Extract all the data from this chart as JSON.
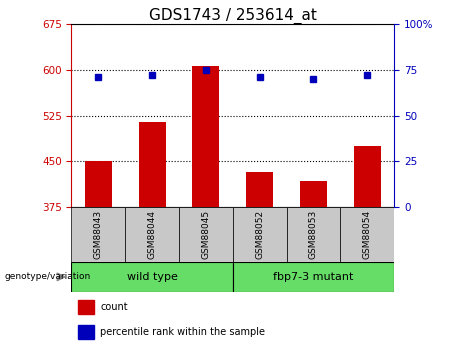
{
  "title": "GDS1743 / 253614_at",
  "samples": [
    "GSM88043",
    "GSM88044",
    "GSM88045",
    "GSM88052",
    "GSM88053",
    "GSM88054"
  ],
  "bar_values": [
    450,
    515,
    607,
    432,
    418,
    475
  ],
  "dot_values": [
    71,
    72,
    75,
    71,
    70,
    72
  ],
  "y_min": 375,
  "y_max": 675,
  "y_ticks": [
    375,
    450,
    525,
    600,
    675
  ],
  "y2_ticks": [
    0,
    25,
    50,
    75,
    100
  ],
  "bar_color": "#cc0000",
  "dot_color": "#0000bb",
  "group1_label": "wild type",
  "group2_label": "fbp7-3 mutant",
  "group_bg_color": "#66dd66",
  "sample_bg_color": "#c8c8c8",
  "genotype_label": "genotype/variation",
  "legend_count_label": "count",
  "legend_pct_label": "percentile rank within the sample",
  "title_fontsize": 11,
  "tick_fontsize": 7.5
}
